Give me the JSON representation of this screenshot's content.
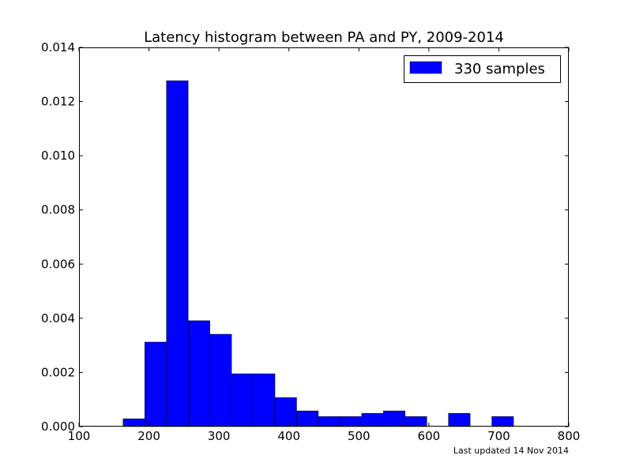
{
  "chart_data": {
    "type": "bar",
    "title": "Latency histogram between PA and PY, 2009-2014",
    "xlabel": "",
    "ylabel": "",
    "xlim": [
      100,
      800
    ],
    "ylim": [
      0,
      0.014
    ],
    "x_ticks": [
      100,
      200,
      300,
      400,
      500,
      600,
      700,
      800
    ],
    "x_tick_labels": [
      "100",
      "200",
      "300",
      "400",
      "500",
      "600",
      "700",
      "800"
    ],
    "y_ticks": [
      0,
      0.002,
      0.004,
      0.006,
      0.008,
      0.01,
      0.012,
      0.014
    ],
    "y_tick_labels": [
      "0.000",
      "0.002",
      "0.004",
      "0.006",
      "0.008",
      "0.010",
      "0.012",
      "0.014"
    ],
    "grid": false,
    "legend_position": "top-right",
    "bin_width": 31,
    "series": [
      {
        "name": "330 samples",
        "color": "#0000ff",
        "bins": [
          {
            "x0": 163,
            "x1": 194,
            "value": 0.00029
          },
          {
            "x0": 194,
            "x1": 225,
            "value": 0.00312
          },
          {
            "x0": 225,
            "x1": 256,
            "value": 0.01277
          },
          {
            "x0": 256,
            "x1": 287,
            "value": 0.00391
          },
          {
            "x0": 287,
            "x1": 318,
            "value": 0.00341
          },
          {
            "x0": 318,
            "x1": 349,
            "value": 0.00195
          },
          {
            "x0": 349,
            "x1": 380,
            "value": 0.00195
          },
          {
            "x0": 380,
            "x1": 411,
            "value": 0.00107
          },
          {
            "x0": 411,
            "x1": 442,
            "value": 0.00058
          },
          {
            "x0": 442,
            "x1": 473,
            "value": 0.00037
          },
          {
            "x0": 473,
            "x1": 504,
            "value": 0.00037
          },
          {
            "x0": 504,
            "x1": 535,
            "value": 0.00049
          },
          {
            "x0": 535,
            "x1": 566,
            "value": 0.00058
          },
          {
            "x0": 566,
            "x1": 597,
            "value": 0.00037
          },
          {
            "x0": 597,
            "x1": 628,
            "value": 0
          },
          {
            "x0": 628,
            "x1": 659,
            "value": 0.00049
          },
          {
            "x0": 659,
            "x1": 690,
            "value": 0
          },
          {
            "x0": 690,
            "x1": 721,
            "value": 0.00037
          }
        ]
      }
    ],
    "footnote": "Last updated 14 Nov 2014"
  },
  "colors": {
    "bar": "#0000ff",
    "footnote": "#808080"
  }
}
